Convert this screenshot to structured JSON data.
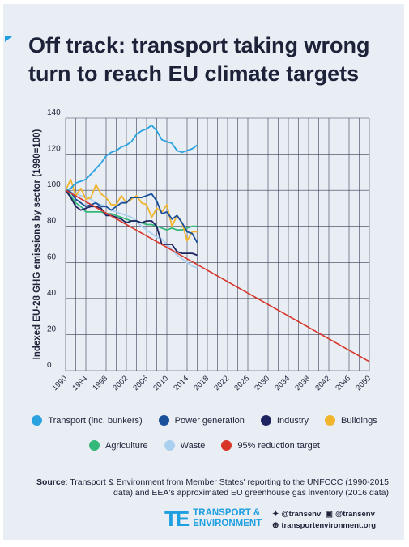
{
  "title": "Off track: transport taking wrong turn to reach EU climate targets",
  "chart_data": {
    "type": "line",
    "ylabel": "Indexed EU-28 GHG emissions by sector (1990=100)",
    "xlim": [
      1990,
      2050
    ],
    "ylim": [
      0,
      140
    ],
    "yticks": [
      "0",
      "20",
      "40",
      "60",
      "80",
      "100",
      "120",
      "140"
    ],
    "xticks": [
      "1990",
      "1994",
      "1998",
      "2002",
      "2006",
      "2010",
      "2014",
      "2018",
      "2022",
      "2026",
      "2030",
      "2034",
      "2038",
      "2042",
      "2046",
      "2050"
    ],
    "grid": true,
    "series": [
      {
        "name": "Transport (inc. bunkers)",
        "color": "#2aa3e0",
        "x": [
          1990,
          1991,
          1992,
          1993,
          1994,
          1995,
          1996,
          1997,
          1998,
          1999,
          2000,
          2001,
          2002,
          2003,
          2004,
          2005,
          2006,
          2007,
          2008,
          2009,
          2010,
          2011,
          2012,
          2013,
          2014,
          2015,
          2016
        ],
        "y": [
          100,
          101,
          104,
          105,
          106,
          109,
          112,
          115,
          119,
          121,
          122,
          124,
          125,
          127,
          131,
          133,
          134,
          136,
          133,
          128,
          127,
          126,
          122,
          121,
          122,
          123,
          125
        ]
      },
      {
        "name": "Power generation",
        "color": "#1a4f9c",
        "x": [
          1990,
          1991,
          1992,
          1993,
          1994,
          1995,
          1996,
          1997,
          1998,
          1999,
          2000,
          2001,
          2002,
          2003,
          2004,
          2005,
          2006,
          2007,
          2008,
          2009,
          2010,
          2011,
          2012,
          2013,
          2014,
          2015,
          2016
        ],
        "y": [
          100,
          99,
          95,
          93,
          91,
          92,
          93,
          91,
          91,
          89,
          91,
          93,
          93,
          96,
          96,
          96,
          97,
          98,
          94,
          87,
          88,
          84,
          86,
          82,
          77,
          76,
          71
        ]
      },
      {
        "name": "Industry",
        "color": "#1e2460",
        "x": [
          1990,
          1991,
          1992,
          1993,
          1994,
          1995,
          1996,
          1997,
          1998,
          1999,
          2000,
          2001,
          2002,
          2003,
          2004,
          2005,
          2006,
          2007,
          2008,
          2009,
          2010,
          2011,
          2012,
          2013,
          2014,
          2015,
          2016
        ],
        "y": [
          100,
          96,
          91,
          89,
          90,
          91,
          91,
          90,
          86,
          86,
          85,
          84,
          82,
          83,
          83,
          82,
          83,
          83,
          80,
          70,
          70,
          70,
          66,
          65,
          65,
          65,
          64
        ]
      },
      {
        "name": "Buildings",
        "color": "#f0b52d",
        "x": [
          1990,
          1991,
          1992,
          1993,
          1994,
          1995,
          1996,
          1997,
          1998,
          1999,
          2000,
          2001,
          2002,
          2003,
          2004,
          2005,
          2006,
          2007,
          2008,
          2009,
          2010,
          2011,
          2012,
          2013,
          2014,
          2015,
          2016
        ],
        "y": [
          100,
          106,
          97,
          101,
          95,
          96,
          103,
          98,
          96,
          92,
          92,
          97,
          93,
          95,
          97,
          93,
          92,
          85,
          90,
          88,
          92,
          80,
          86,
          82,
          72,
          77,
          77
        ]
      },
      {
        "name": "Agriculture",
        "color": "#34b879",
        "x": [
          1990,
          1991,
          1992,
          1993,
          1994,
          1995,
          1996,
          1997,
          1998,
          1999,
          2000,
          2001,
          2002,
          2003,
          2004,
          2005,
          2006,
          2007,
          2008,
          2009,
          2010,
          2011,
          2012,
          2013,
          2014,
          2015,
          2016
        ],
        "y": [
          100,
          97,
          93,
          91,
          88,
          88,
          88,
          88,
          87,
          87,
          86,
          85,
          84,
          83,
          83,
          82,
          81,
          81,
          80,
          79,
          78,
          79,
          78,
          78,
          79,
          80,
          80
        ]
      },
      {
        "name": "Waste",
        "color": "#aad0f0",
        "x": [
          1990,
          1991,
          1992,
          1993,
          1994,
          1995,
          1996,
          1997,
          1998,
          1999,
          2000,
          2001,
          2002,
          2003,
          2004,
          2005,
          2006,
          2007,
          2008,
          2009,
          2010,
          2011,
          2012,
          2013,
          2014,
          2015,
          2016
        ],
        "y": [
          100,
          99,
          98,
          97,
          96,
          95,
          93,
          92,
          91,
          89,
          88,
          87,
          86,
          85,
          83,
          80,
          78,
          76,
          74,
          73,
          70,
          67,
          64,
          62,
          60,
          58,
          57
        ]
      },
      {
        "name": "95% reduction target",
        "color": "#d8362a",
        "x": [
          1990,
          2050
        ],
        "y": [
          100,
          5
        ]
      }
    ]
  },
  "source": {
    "label": "Source",
    "text": ": Transport & Environment from Member States' reporting to the UNFCCC (1990-2015 data) and EEA's approximated EU greenhouse gas inventory (2016 data)"
  },
  "brand": {
    "line1": "TRANSPORT &",
    "line2": "ENVIRONMENT"
  },
  "social": {
    "twitter": "@transenv",
    "facebook": "@transenv",
    "website": "transportenvironment.org"
  }
}
